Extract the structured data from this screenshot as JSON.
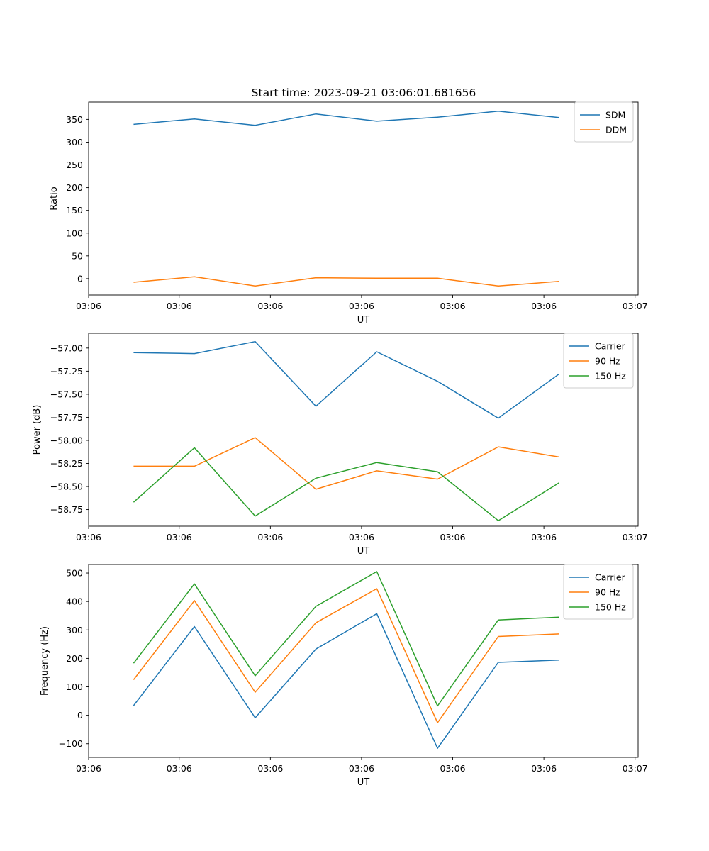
{
  "figure": {
    "title": "Start time: 2023-09-21 03:06:01.681656"
  },
  "colors": {
    "blue": "#1f77b4",
    "orange": "#ff7f0e",
    "green": "#2ca02c"
  },
  "chart_data": [
    {
      "type": "line",
      "xlabel": "UT",
      "ylabel": "Ratio",
      "x": [
        0,
        1,
        2,
        3,
        4,
        5,
        6,
        7
      ],
      "xlim": [
        -0.74,
        8.3
      ],
      "x_ticks": [
        -0.74,
        0.75,
        2.25,
        3.75,
        5.25,
        6.75,
        8.25
      ],
      "x_tick_labels": [
        "03:06",
        "03:06",
        "03:06",
        "03:06",
        "03:06",
        "03:06",
        "03:07"
      ],
      "ylim": [
        -36,
        388
      ],
      "y_ticks": [
        0,
        50,
        100,
        150,
        200,
        250,
        300,
        350
      ],
      "y_tick_labels": [
        "0",
        "50",
        "100",
        "150",
        "200",
        "250",
        "300",
        "350"
      ],
      "legend_position": "top-right",
      "series": [
        {
          "name": "SDM",
          "color": "#1f77b4",
          "values": [
            339,
            351,
            337,
            362,
            346,
            355,
            368,
            354
          ]
        },
        {
          "name": "DDM",
          "color": "#ff7f0e",
          "values": [
            -8,
            4,
            -16,
            2,
            1,
            1,
            -16,
            -6
          ]
        }
      ]
    },
    {
      "type": "line",
      "xlabel": "UT",
      "ylabel": "Power (dB)",
      "x": [
        0,
        1,
        2,
        3,
        4,
        5,
        6,
        7
      ],
      "xlim": [
        -0.74,
        8.3
      ],
      "x_ticks": [
        -0.74,
        0.75,
        2.25,
        3.75,
        5.25,
        6.75,
        8.25
      ],
      "x_tick_labels": [
        "03:06",
        "03:06",
        "03:06",
        "03:06",
        "03:06",
        "03:06",
        "03:07"
      ],
      "ylim": [
        -58.93,
        -56.84
      ],
      "y_ticks": [
        -57.0,
        -57.25,
        -57.5,
        -57.75,
        -58.0,
        -58.25,
        -58.5,
        -58.75
      ],
      "y_tick_labels": [
        "−57.00",
        "−57.25",
        "−57.50",
        "−57.75",
        "−58.00",
        "−58.25",
        "−58.50",
        "−58.75"
      ],
      "legend_position": "top-right",
      "series": [
        {
          "name": "Carrier",
          "color": "#1f77b4",
          "values": [
            -57.05,
            -57.06,
            -56.93,
            -57.63,
            -57.04,
            -57.36,
            -57.76,
            -57.28
          ]
        },
        {
          "name": "90 Hz",
          "color": "#ff7f0e",
          "values": [
            -58.28,
            -58.28,
            -57.97,
            -58.53,
            -58.33,
            -58.42,
            -58.07,
            -58.18
          ]
        },
        {
          "name": "150 Hz",
          "color": "#2ca02c",
          "values": [
            -58.67,
            -58.08,
            -58.82,
            -58.41,
            -58.24,
            -58.34,
            -58.87,
            -58.46
          ]
        }
      ]
    },
    {
      "type": "line",
      "xlabel": "UT",
      "ylabel": "Frequency (Hz)",
      "x": [
        0,
        1,
        2,
        3,
        4,
        5,
        6,
        7
      ],
      "xlim": [
        -0.74,
        8.3
      ],
      "x_ticks": [
        -0.74,
        0.75,
        2.25,
        3.75,
        5.25,
        6.75,
        8.25
      ],
      "x_tick_labels": [
        "03:06",
        "03:06",
        "03:06",
        "03:06",
        "03:06",
        "03:06",
        "03:07"
      ],
      "ylim": [
        -148,
        530
      ],
      "y_ticks": [
        -100,
        0,
        100,
        200,
        300,
        400,
        500
      ],
      "y_tick_labels": [
        "−100",
        "0",
        "100",
        "200",
        "300",
        "400",
        "500"
      ],
      "legend_position": "top-right",
      "series": [
        {
          "name": "Carrier",
          "color": "#1f77b4",
          "values": [
            34,
            312,
            -9,
            233,
            357,
            -116,
            186,
            194
          ]
        },
        {
          "name": "90 Hz",
          "color": "#ff7f0e",
          "values": [
            125,
            403,
            81,
            325,
            445,
            -26,
            277,
            286
          ]
        },
        {
          "name": "150 Hz",
          "color": "#2ca02c",
          "values": [
            183,
            462,
            139,
            383,
            505,
            33,
            335,
            345
          ]
        }
      ]
    }
  ]
}
